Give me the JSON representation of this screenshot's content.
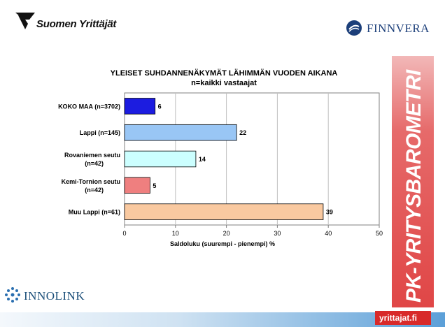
{
  "logos": {
    "suomen_yrittajat": "Suomen Yrittäjät",
    "finnvera": "FINNVERA",
    "innolink": "INNOLINK",
    "yrittajat_fi": "yrittajat.fi",
    "side_label": "PK-YRITYSBAROMETRI"
  },
  "chart_data": {
    "type": "bar",
    "orientation": "horizontal",
    "title": "YLEISET SUHDANNENÄKYMÄT LÄHIMMÄN VUODEN AIKANA",
    "subtitle": "n=kaikki vastaajat",
    "xlabel": "Saldoluku (suurempi - pienempi) %",
    "ylabel": "",
    "xlim": [
      0,
      50
    ],
    "xticks": [
      0,
      10,
      20,
      30,
      40,
      50
    ],
    "grid": true,
    "categories": [
      [
        "KOKO MAA (n=3702)"
      ],
      [
        "Lappi (n=145)"
      ],
      [
        "Rovaniemen seutu",
        "(n=42)"
      ],
      [
        "Kemi-Tornion seutu",
        "(n=42)"
      ],
      [
        "Muu Lappi (n=61)"
      ]
    ],
    "values": [
      6,
      22,
      14,
      5,
      39
    ],
    "colors": [
      "#1c1ce0",
      "#99c6f5",
      "#ccffff",
      "#ef7f7f",
      "#f9c9a0"
    ]
  }
}
